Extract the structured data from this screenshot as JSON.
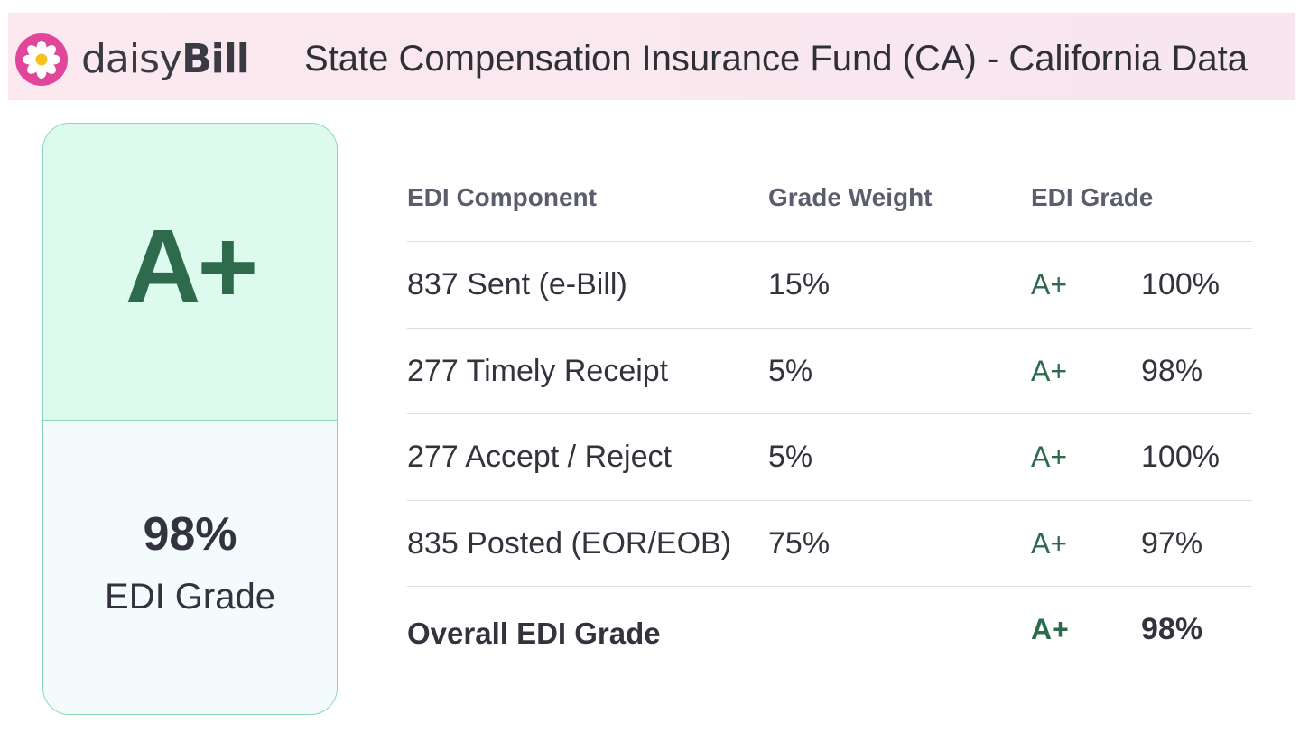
{
  "header": {
    "logo_text_light": "daisy",
    "logo_text_bold": "Bill",
    "logo_icon": "daisy-flower-icon",
    "title": "State Compensation Insurance Fund (CA) - California Data"
  },
  "grade_card": {
    "letter_grade": "A+",
    "percent": "98%",
    "label": "EDI Grade"
  },
  "table": {
    "headers": {
      "component": "EDI Component",
      "weight": "Grade Weight",
      "grade": "EDI Grade"
    },
    "rows": [
      {
        "component": "837 Sent (e-Bill)",
        "weight": "15%",
        "grade": "A+",
        "percent": "100%"
      },
      {
        "component": "277 Timely Receipt",
        "weight": "5%",
        "grade": "A+",
        "percent": "98%"
      },
      {
        "component": "277 Accept / Reject",
        "weight": "5%",
        "grade": "A+",
        "percent": "100%"
      },
      {
        "component": "835 Posted (EOR/EOB)",
        "weight": "75%",
        "grade": "A+",
        "percent": "97%"
      }
    ],
    "overall": {
      "label": "Overall EDI Grade",
      "grade": "A+",
      "percent": "98%"
    }
  },
  "colors": {
    "header_bg": "#fbe9ef",
    "card_top_bg": "#dcfbee",
    "card_bottom_bg": "#f4fbfd",
    "card_border": "#86d6b4",
    "grade_green": "#2e6a4c",
    "logo_pink": "#e0479b"
  }
}
